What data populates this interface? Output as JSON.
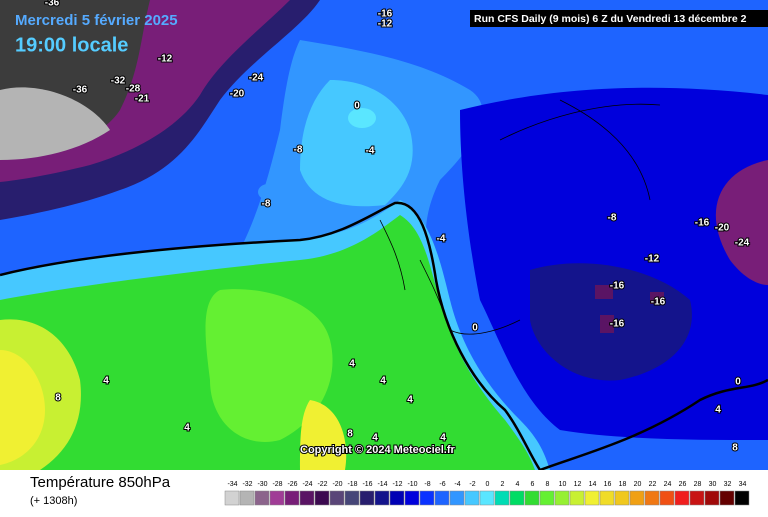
{
  "header": {
    "date": "Mercredi 5 février 2025",
    "time": "19:00 locale",
    "run": "Run CFS Daily (9 mois) 6 Z du Vendredi 13 décembre 2"
  },
  "copyright": "Copyright © 2024 Meteociel.fr",
  "footer": {
    "title": "Température 850hPa",
    "lead": "(+ 1308h)"
  },
  "legend": {
    "values": [
      -34,
      -32,
      -30,
      -28,
      -26,
      -24,
      -22,
      -20,
      -18,
      -16,
      -14,
      -12,
      -10,
      -8,
      -6,
      -4,
      -2,
      0,
      2,
      4,
      6,
      8,
      10,
      12,
      14,
      16,
      18,
      20,
      22,
      24,
      26,
      28,
      30,
      32,
      34
    ],
    "colors": [
      "#d2d2d2",
      "#b4b4b4",
      "#8c648c",
      "#a03c96",
      "#781e78",
      "#5a1464",
      "#3c0a50",
      "#5a4678",
      "#464678",
      "#281e6e",
      "#14148c",
      "#0000b4",
      "#0000dc",
      "#0a32ff",
      "#1e64ff",
      "#3296ff",
      "#46c8ff",
      "#5ae6ff",
      "#00dcb4",
      "#00dc64",
      "#32dc32",
      "#64f032",
      "#96f032",
      "#c8f032",
      "#f0f032",
      "#f0dc28",
      "#f0c81e",
      "#f0a014",
      "#f07814",
      "#f05014",
      "#f01e1e",
      "#c81414",
      "#a00a0a",
      "#640000",
      "#000000"
    ]
  },
  "map_labels": [
    -36,
    -16,
    -12,
    -12,
    -24,
    -32,
    -36,
    -28,
    -21,
    -20,
    0,
    -8,
    -4,
    -8,
    -8,
    -16,
    -20,
    -24,
    -4,
    -12,
    -16,
    -16,
    -16,
    0,
    4,
    4,
    4,
    8,
    4,
    4,
    8,
    4,
    4,
    4,
    0,
    8
  ]
}
